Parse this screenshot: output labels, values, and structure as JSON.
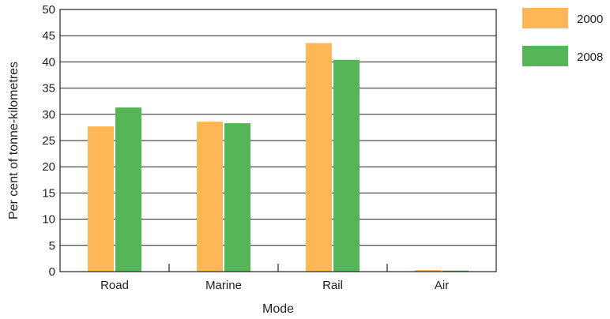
{
  "chart_data": {
    "type": "bar",
    "categories": [
      "Road",
      "Marine",
      "Rail",
      "Air"
    ],
    "series": [
      {
        "name": "2000",
        "color": "#FDB756",
        "values": [
          27.7,
          28.6,
          43.6,
          0.3
        ]
      },
      {
        "name": "2008",
        "color": "#55B557",
        "values": [
          31.3,
          28.3,
          40.4,
          0.2
        ]
      }
    ],
    "xlabel": "Mode",
    "ylabel": "Per cent of tonne-kilometres",
    "ylim": [
      0,
      50
    ],
    "yticks": [
      "0",
      "5",
      "10",
      "15",
      "20",
      "25",
      "30",
      "35",
      "40",
      "45",
      "50"
    ],
    "grid": true,
    "legend_position": "right"
  }
}
